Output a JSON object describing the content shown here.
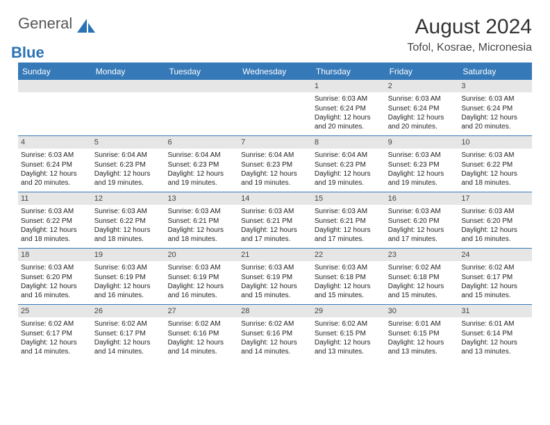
{
  "logo": {
    "word1": "General",
    "word2": "Blue"
  },
  "title": "August 2024",
  "location": "Tofol, Kosrae, Micronesia",
  "dayHeaders": [
    "Sunday",
    "Monday",
    "Tuesday",
    "Wednesday",
    "Thursday",
    "Friday",
    "Saturday"
  ],
  "colors": {
    "accent": "#3579b8",
    "headerText": "#ffffff",
    "dayNumBg": "#e6e6e6",
    "bodyText": "#222222"
  },
  "weeks": [
    [
      {
        "blank": true
      },
      {
        "blank": true
      },
      {
        "blank": true
      },
      {
        "blank": true
      },
      {
        "n": "1",
        "sr": "Sunrise: 6:03 AM",
        "ss": "Sunset: 6:24 PM",
        "dl": "Daylight: 12 hours and 20 minutes."
      },
      {
        "n": "2",
        "sr": "Sunrise: 6:03 AM",
        "ss": "Sunset: 6:24 PM",
        "dl": "Daylight: 12 hours and 20 minutes."
      },
      {
        "n": "3",
        "sr": "Sunrise: 6:03 AM",
        "ss": "Sunset: 6:24 PM",
        "dl": "Daylight: 12 hours and 20 minutes."
      }
    ],
    [
      {
        "n": "4",
        "sr": "Sunrise: 6:03 AM",
        "ss": "Sunset: 6:24 PM",
        "dl": "Daylight: 12 hours and 20 minutes."
      },
      {
        "n": "5",
        "sr": "Sunrise: 6:04 AM",
        "ss": "Sunset: 6:23 PM",
        "dl": "Daylight: 12 hours and 19 minutes."
      },
      {
        "n": "6",
        "sr": "Sunrise: 6:04 AM",
        "ss": "Sunset: 6:23 PM",
        "dl": "Daylight: 12 hours and 19 minutes."
      },
      {
        "n": "7",
        "sr": "Sunrise: 6:04 AM",
        "ss": "Sunset: 6:23 PM",
        "dl": "Daylight: 12 hours and 19 minutes."
      },
      {
        "n": "8",
        "sr": "Sunrise: 6:04 AM",
        "ss": "Sunset: 6:23 PM",
        "dl": "Daylight: 12 hours and 19 minutes."
      },
      {
        "n": "9",
        "sr": "Sunrise: 6:03 AM",
        "ss": "Sunset: 6:23 PM",
        "dl": "Daylight: 12 hours and 19 minutes."
      },
      {
        "n": "10",
        "sr": "Sunrise: 6:03 AM",
        "ss": "Sunset: 6:22 PM",
        "dl": "Daylight: 12 hours and 18 minutes."
      }
    ],
    [
      {
        "n": "11",
        "sr": "Sunrise: 6:03 AM",
        "ss": "Sunset: 6:22 PM",
        "dl": "Daylight: 12 hours and 18 minutes."
      },
      {
        "n": "12",
        "sr": "Sunrise: 6:03 AM",
        "ss": "Sunset: 6:22 PM",
        "dl": "Daylight: 12 hours and 18 minutes."
      },
      {
        "n": "13",
        "sr": "Sunrise: 6:03 AM",
        "ss": "Sunset: 6:21 PM",
        "dl": "Daylight: 12 hours and 18 minutes."
      },
      {
        "n": "14",
        "sr": "Sunrise: 6:03 AM",
        "ss": "Sunset: 6:21 PM",
        "dl": "Daylight: 12 hours and 17 minutes."
      },
      {
        "n": "15",
        "sr": "Sunrise: 6:03 AM",
        "ss": "Sunset: 6:21 PM",
        "dl": "Daylight: 12 hours and 17 minutes."
      },
      {
        "n": "16",
        "sr": "Sunrise: 6:03 AM",
        "ss": "Sunset: 6:20 PM",
        "dl": "Daylight: 12 hours and 17 minutes."
      },
      {
        "n": "17",
        "sr": "Sunrise: 6:03 AM",
        "ss": "Sunset: 6:20 PM",
        "dl": "Daylight: 12 hours and 16 minutes."
      }
    ],
    [
      {
        "n": "18",
        "sr": "Sunrise: 6:03 AM",
        "ss": "Sunset: 6:20 PM",
        "dl": "Daylight: 12 hours and 16 minutes."
      },
      {
        "n": "19",
        "sr": "Sunrise: 6:03 AM",
        "ss": "Sunset: 6:19 PM",
        "dl": "Daylight: 12 hours and 16 minutes."
      },
      {
        "n": "20",
        "sr": "Sunrise: 6:03 AM",
        "ss": "Sunset: 6:19 PM",
        "dl": "Daylight: 12 hours and 16 minutes."
      },
      {
        "n": "21",
        "sr": "Sunrise: 6:03 AM",
        "ss": "Sunset: 6:19 PM",
        "dl": "Daylight: 12 hours and 15 minutes."
      },
      {
        "n": "22",
        "sr": "Sunrise: 6:03 AM",
        "ss": "Sunset: 6:18 PM",
        "dl": "Daylight: 12 hours and 15 minutes."
      },
      {
        "n": "23",
        "sr": "Sunrise: 6:02 AM",
        "ss": "Sunset: 6:18 PM",
        "dl": "Daylight: 12 hours and 15 minutes."
      },
      {
        "n": "24",
        "sr": "Sunrise: 6:02 AM",
        "ss": "Sunset: 6:17 PM",
        "dl": "Daylight: 12 hours and 15 minutes."
      }
    ],
    [
      {
        "n": "25",
        "sr": "Sunrise: 6:02 AM",
        "ss": "Sunset: 6:17 PM",
        "dl": "Daylight: 12 hours and 14 minutes."
      },
      {
        "n": "26",
        "sr": "Sunrise: 6:02 AM",
        "ss": "Sunset: 6:17 PM",
        "dl": "Daylight: 12 hours and 14 minutes."
      },
      {
        "n": "27",
        "sr": "Sunrise: 6:02 AM",
        "ss": "Sunset: 6:16 PM",
        "dl": "Daylight: 12 hours and 14 minutes."
      },
      {
        "n": "28",
        "sr": "Sunrise: 6:02 AM",
        "ss": "Sunset: 6:16 PM",
        "dl": "Daylight: 12 hours and 14 minutes."
      },
      {
        "n": "29",
        "sr": "Sunrise: 6:02 AM",
        "ss": "Sunset: 6:15 PM",
        "dl": "Daylight: 12 hours and 13 minutes."
      },
      {
        "n": "30",
        "sr": "Sunrise: 6:01 AM",
        "ss": "Sunset: 6:15 PM",
        "dl": "Daylight: 12 hours and 13 minutes."
      },
      {
        "n": "31",
        "sr": "Sunrise: 6:01 AM",
        "ss": "Sunset: 6:14 PM",
        "dl": "Daylight: 12 hours and 13 minutes."
      }
    ]
  ]
}
